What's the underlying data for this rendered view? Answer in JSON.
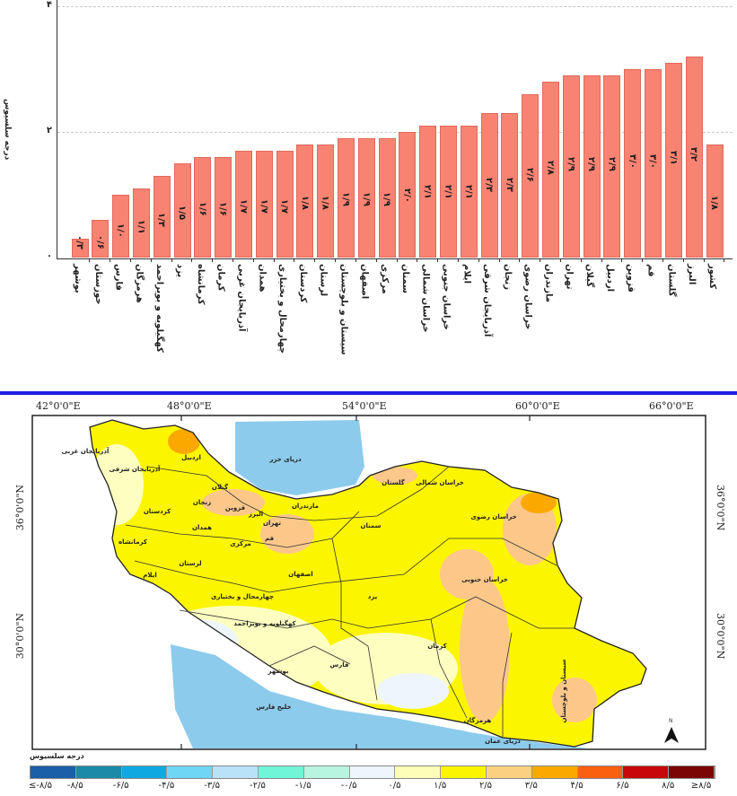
{
  "chart_data": {
    "type": "bar",
    "ylabel": "درجه سلسیوس",
    "ylim": [
      0,
      4
    ],
    "yticks": [
      "۰",
      "۲",
      "۴"
    ],
    "ytick_values": [
      0,
      2,
      4
    ],
    "grid": "horizontal dashed",
    "bar_color": "#f98372",
    "categories": [
      "بوشهر",
      "خوزستان",
      "فارس",
      "هرمزگان",
      "کهگیلویه و بویراحمد",
      "یزد",
      "کرمانشاه",
      "کرمان",
      "آذربایجان غربی",
      "همدان",
      "چهارمحال و بختیاری",
      "کردستان",
      "لرستان",
      "سیستان و بلوچستان",
      "اصفهان",
      "مرکزی",
      "سمنان",
      "خراسان شمالی",
      "خراسان جنوبی",
      "ایلام",
      "آذربایجان شرقی",
      "زنجان",
      "خراسان رضوی",
      "مازندران",
      "تهران",
      "گیلان",
      "اردبیل",
      "قزوین",
      "قم",
      "گلستان",
      "البرز",
      "کشور"
    ],
    "values": [
      0.3,
      0.6,
      1.0,
      1.1,
      1.3,
      1.5,
      1.6,
      1.6,
      1.7,
      1.7,
      1.7,
      1.8,
      1.8,
      1.9,
      1.9,
      1.9,
      2.0,
      2.1,
      2.1,
      2.1,
      2.3,
      2.3,
      2.6,
      2.8,
      2.9,
      2.9,
      2.9,
      3.0,
      3.0,
      3.1,
      3.2,
      1.8
    ],
    "value_labels": [
      "۰/۳",
      "۰/۶",
      "۱/۰",
      "۱/۱",
      "۱/۳",
      "۱/۵",
      "۱/۶",
      "۱/۶",
      "۱/۷",
      "۱/۷",
      "۱/۷",
      "۱/۸",
      "۱/۸",
      "۱/۹",
      "۱/۹",
      "۱/۹",
      "۲/۰",
      "۲/۱",
      "۲/۱",
      "۲/۱",
      "۲/۳",
      "۲/۳",
      "۲/۶",
      "۲/۸",
      "۲/۹",
      "۲/۹",
      "۲/۹",
      "۳/۰",
      "۳/۰",
      "۳/۱",
      "۳/۲",
      "۱/۸"
    ]
  },
  "map": {
    "lon_labels": [
      "42°0'0\"E",
      "48°0'0\"E",
      "54°0'0\"E",
      "60°0'0\"E",
      "66°0'0\"E"
    ],
    "lat_labels": [
      "36°0'0\"N",
      "30°0'0\"N"
    ],
    "north_label": "N",
    "water_labels": {
      "caspian": "دریای خزر",
      "gulf": "خلیج فارس",
      "oman": "دریای عمان"
    },
    "province_labels": [
      "آذربایجان غربی",
      "اردبیل",
      "آذربایجان شرقی",
      "گیلان",
      "زنجان",
      "قزوین",
      "البرز",
      "مازندران",
      "تهران",
      "کردستان",
      "همدان",
      "قم",
      "مرکزی",
      "کرمانشاه",
      "لرستان",
      "سمنان",
      "اصفهان",
      "ایلام",
      "چهارمحال و بختیاری",
      "یزد",
      "کهگیلویه و بویراحمد",
      "گلستان",
      "خراسان شمالی",
      "خراسان رضوی",
      "خراسان جنوبی",
      "کرمان",
      "فارس",
      "بوشهر",
      "هرمزگان",
      "سیستان و بلوچستان"
    ],
    "colors": {
      "land_main": "#fcf500",
      "warm": "#fbc88a",
      "hot": "#fba800",
      "pale": "#fcffc0",
      "cool": "#eef6fb",
      "water": "#8ccbec"
    }
  },
  "legend": {
    "title": "درجه سلسیوس",
    "labels": [
      "≤-۸/۵",
      "-۸/۵",
      "-۶/۵",
      "-۴/۵",
      "-۳/۵",
      "-۲/۵",
      "-۱/۵",
      "-۰/۵",
      "۰/۵",
      "۱/۵",
      "۲/۵",
      "۳/۵",
      "۴/۵",
      "۶/۵",
      "۸/۵",
      "≥۸/۵"
    ],
    "colors": [
      "#1a5fa8",
      "#1a8aa8",
      "#10a8e0",
      "#70d6f5",
      "#b8e2f8",
      "#70f5d8",
      "#b8f5e0",
      "#eef6fb",
      "#fcffb8",
      "#fcf500",
      "#fbd080",
      "#fba800",
      "#fb6010",
      "#c80808",
      "#7a0505"
    ]
  }
}
